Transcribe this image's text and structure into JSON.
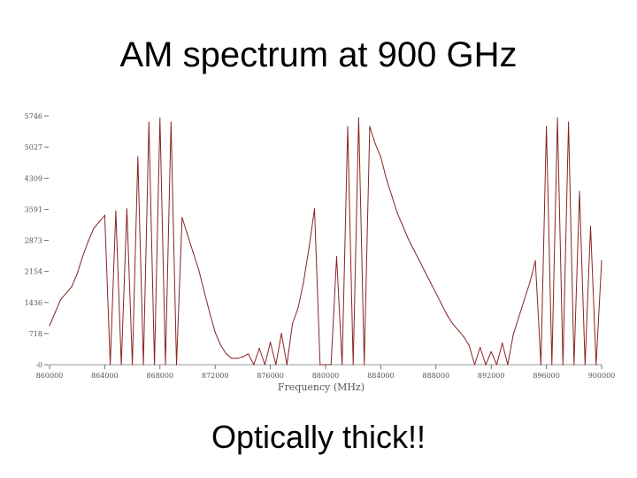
{
  "slide": {
    "title": "AM spectrum at 900 GHz",
    "caption": "Optically thick!!"
  },
  "chart_data": {
    "type": "line",
    "title": "",
    "xlabel": "Frequency (MHz)",
    "ylabel": "",
    "xlim": [
      860000,
      900000
    ],
    "ylim": [
      0,
      5746
    ],
    "x_ticks": [
      860000,
      864000,
      868000,
      872000,
      876000,
      880000,
      884000,
      888000,
      892000,
      896000,
      900000
    ],
    "y_ticks": [
      0,
      718,
      1436,
      2154,
      2873,
      3591,
      4309,
      5027,
      5746
    ],
    "y_tick_labels": [
      "-0",
      "718",
      "1436",
      "2154",
      "2873",
      "3591",
      "4309",
      "5027",
      "5746"
    ],
    "grid": false,
    "legend": "none",
    "line_color": "#8b2323",
    "series": [
      {
        "x": [
          860000,
          860400,
          860800,
          861200,
          861600,
          862000,
          862400,
          862800,
          863200,
          863600,
          864000,
          864400,
          864800,
          865200,
          865600,
          866000,
          866400,
          866800,
          867200,
          867600,
          868000,
          868400,
          868800,
          869200,
          869600,
          870000,
          870400,
          870800,
          871200,
          871600,
          872000,
          872400,
          872800,
          873200,
          873600,
          874000,
          874400,
          874800,
          875200,
          875600,
          876000,
          876400,
          876800,
          877200,
          877600,
          878000,
          878400,
          878800,
          879200,
          879600,
          880000,
          880400,
          880800,
          881200,
          881600,
          882000,
          882400,
          882800,
          883200,
          883600,
          884000,
          884400,
          884800,
          885200,
          885600,
          886000,
          886400,
          886800,
          887200,
          887600,
          888000,
          888400,
          888800,
          889200,
          889600,
          890000,
          890400,
          890800,
          891200,
          891600,
          892000,
          892400,
          892800,
          893200,
          893600,
          894000,
          894400,
          894800,
          895200,
          895600,
          896000,
          896400,
          896800,
          897200,
          897600,
          898000,
          898400,
          898800,
          899200,
          899600,
          900000
        ],
        "y": [
          900,
          1200,
          1500,
          1650,
          1800,
          2100,
          2500,
          2850,
          3150,
          3300,
          3450,
          0,
          3550,
          0,
          3600,
          0,
          4800,
          0,
          5600,
          0,
          5700,
          0,
          5600,
          0,
          3400,
          3000,
          2600,
          2200,
          1700,
          1200,
          750,
          450,
          250,
          150,
          150,
          180,
          250,
          0,
          380,
          0,
          520,
          0,
          720,
          0,
          950,
          1300,
          1900,
          2700,
          3600,
          0,
          0,
          0,
          2500,
          0,
          5500,
          0,
          5700,
          0,
          5500,
          5100,
          4800,
          4300,
          3900,
          3500,
          3200,
          2900,
          2650,
          2400,
          2150,
          1900,
          1650,
          1400,
          1150,
          950,
          800,
          650,
          450,
          0,
          400,
          0,
          300,
          0,
          500,
          0,
          700,
          1100,
          1500,
          1900,
          2400,
          0,
          5500,
          0,
          5700,
          0,
          5600,
          0,
          4000,
          0,
          3200,
          0,
          2400
        ]
      }
    ]
  }
}
